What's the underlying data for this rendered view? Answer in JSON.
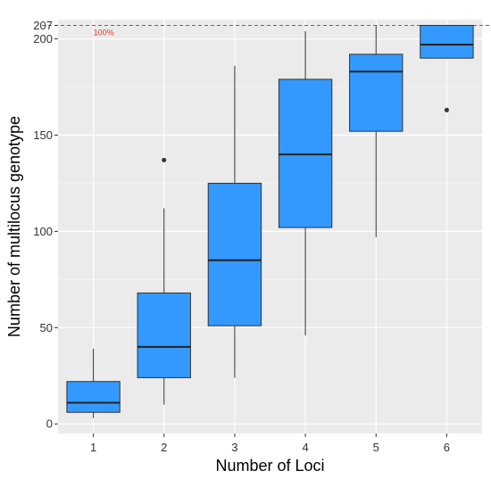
{
  "chart_data": {
    "type": "box",
    "xlabel": "Number of Loci",
    "ylabel": "Number of multilocus genotype",
    "categories": [
      "1",
      "2",
      "3",
      "4",
      "5",
      "6"
    ],
    "ylim": [
      -5,
      210
    ],
    "y_ticks": [
      0,
      50,
      100,
      150,
      200
    ],
    "extra_y_tick": 207,
    "reference_line": {
      "value": 207,
      "label": "100%",
      "color": "#e8332a",
      "style": "dashed"
    },
    "box_color": "#3399ff",
    "panel_color": "#ebebeb",
    "grid": true,
    "boxes": [
      {
        "category": "1",
        "min": 3,
        "q1": 6,
        "median": 11,
        "q3": 22,
        "max": 39,
        "outliers": []
      },
      {
        "category": "2",
        "min": 10,
        "q1": 24,
        "median": 40,
        "q3": 68,
        "max": 112,
        "outliers": [
          137
        ]
      },
      {
        "category": "3",
        "min": 24,
        "q1": 51,
        "median": 85,
        "q3": 125,
        "max": 186,
        "outliers": []
      },
      {
        "category": "4",
        "min": 46,
        "q1": 102,
        "median": 140,
        "q3": 179,
        "max": 204,
        "outliers": []
      },
      {
        "category": "5",
        "min": 97,
        "q1": 152,
        "median": 183,
        "q3": 192,
        "max": 207,
        "outliers": []
      },
      {
        "category": "6",
        "min": 190,
        "q1": 190,
        "median": 197,
        "q3": 207,
        "max": 207,
        "outliers": [
          163
        ]
      }
    ]
  }
}
